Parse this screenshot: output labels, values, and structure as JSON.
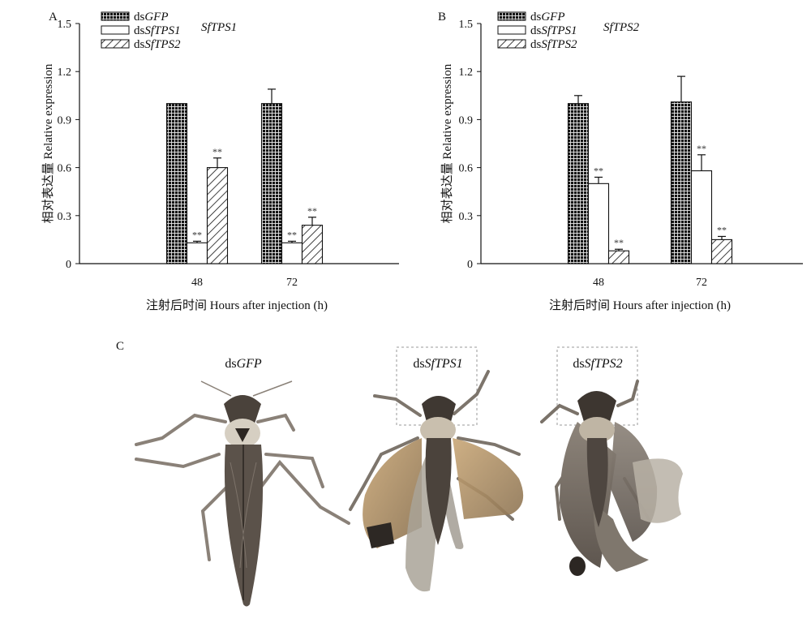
{
  "chart_data": [
    {
      "panel": "A",
      "type": "bar",
      "title": "SfTPS1",
      "categories": [
        "48",
        "72"
      ],
      "series": [
        {
          "name": "dsGFP",
          "values": [
            1.0,
            1.0
          ],
          "errors": [
            0.0,
            0.09
          ],
          "significance": [
            "",
            ""
          ],
          "pattern": "grid"
        },
        {
          "name": "dsSfTPS1",
          "values": [
            0.13,
            0.13
          ],
          "errors": [
            0.01,
            0.01
          ],
          "significance": [
            "**",
            "**"
          ],
          "pattern": "white"
        },
        {
          "name": "dsSfTPS2",
          "values": [
            0.6,
            0.24
          ],
          "errors": [
            0.06,
            0.05
          ],
          "significance": [
            "**",
            "**"
          ],
          "pattern": "hatch"
        }
      ],
      "xlabel": "注射后时间 Hours after injection (h)",
      "ylabel": "相对表达量 Relative expression",
      "ylim": [
        0,
        1.5
      ],
      "yticks": [
        "0",
        "0.3",
        "0.6",
        "0.9",
        "1.2",
        "1.5"
      ]
    },
    {
      "panel": "B",
      "type": "bar",
      "title": "SfTPS2",
      "categories": [
        "48",
        "72"
      ],
      "series": [
        {
          "name": "dsGFP",
          "values": [
            1.0,
            1.01
          ],
          "errors": [
            0.05,
            0.16
          ],
          "significance": [
            "",
            ""
          ],
          "pattern": "grid"
        },
        {
          "name": "dsSfTPS1",
          "values": [
            0.5,
            0.58
          ],
          "errors": [
            0.04,
            0.1
          ],
          "significance": [
            "**",
            "**"
          ],
          "pattern": "white"
        },
        {
          "name": "dsSfTPS2",
          "values": [
            0.08,
            0.15
          ],
          "errors": [
            0.01,
            0.02
          ],
          "significance": [
            "**",
            "**"
          ],
          "pattern": "hatch"
        }
      ],
      "xlabel": "注射后时间 Hours after injection (h)",
      "ylabel": "相对表达量 Relative expression",
      "ylim": [
        0,
        1.5
      ],
      "yticks": [
        "0",
        "0.3",
        "0.6",
        "0.9",
        "1.2",
        "1.5"
      ]
    }
  ],
  "photos": {
    "panel": "C",
    "items": [
      {
        "prefix": "ds",
        "gene": "GFP"
      },
      {
        "prefix": "ds",
        "gene": "SfTPS1"
      },
      {
        "prefix": "ds",
        "gene": "SfTPS2"
      }
    ]
  }
}
